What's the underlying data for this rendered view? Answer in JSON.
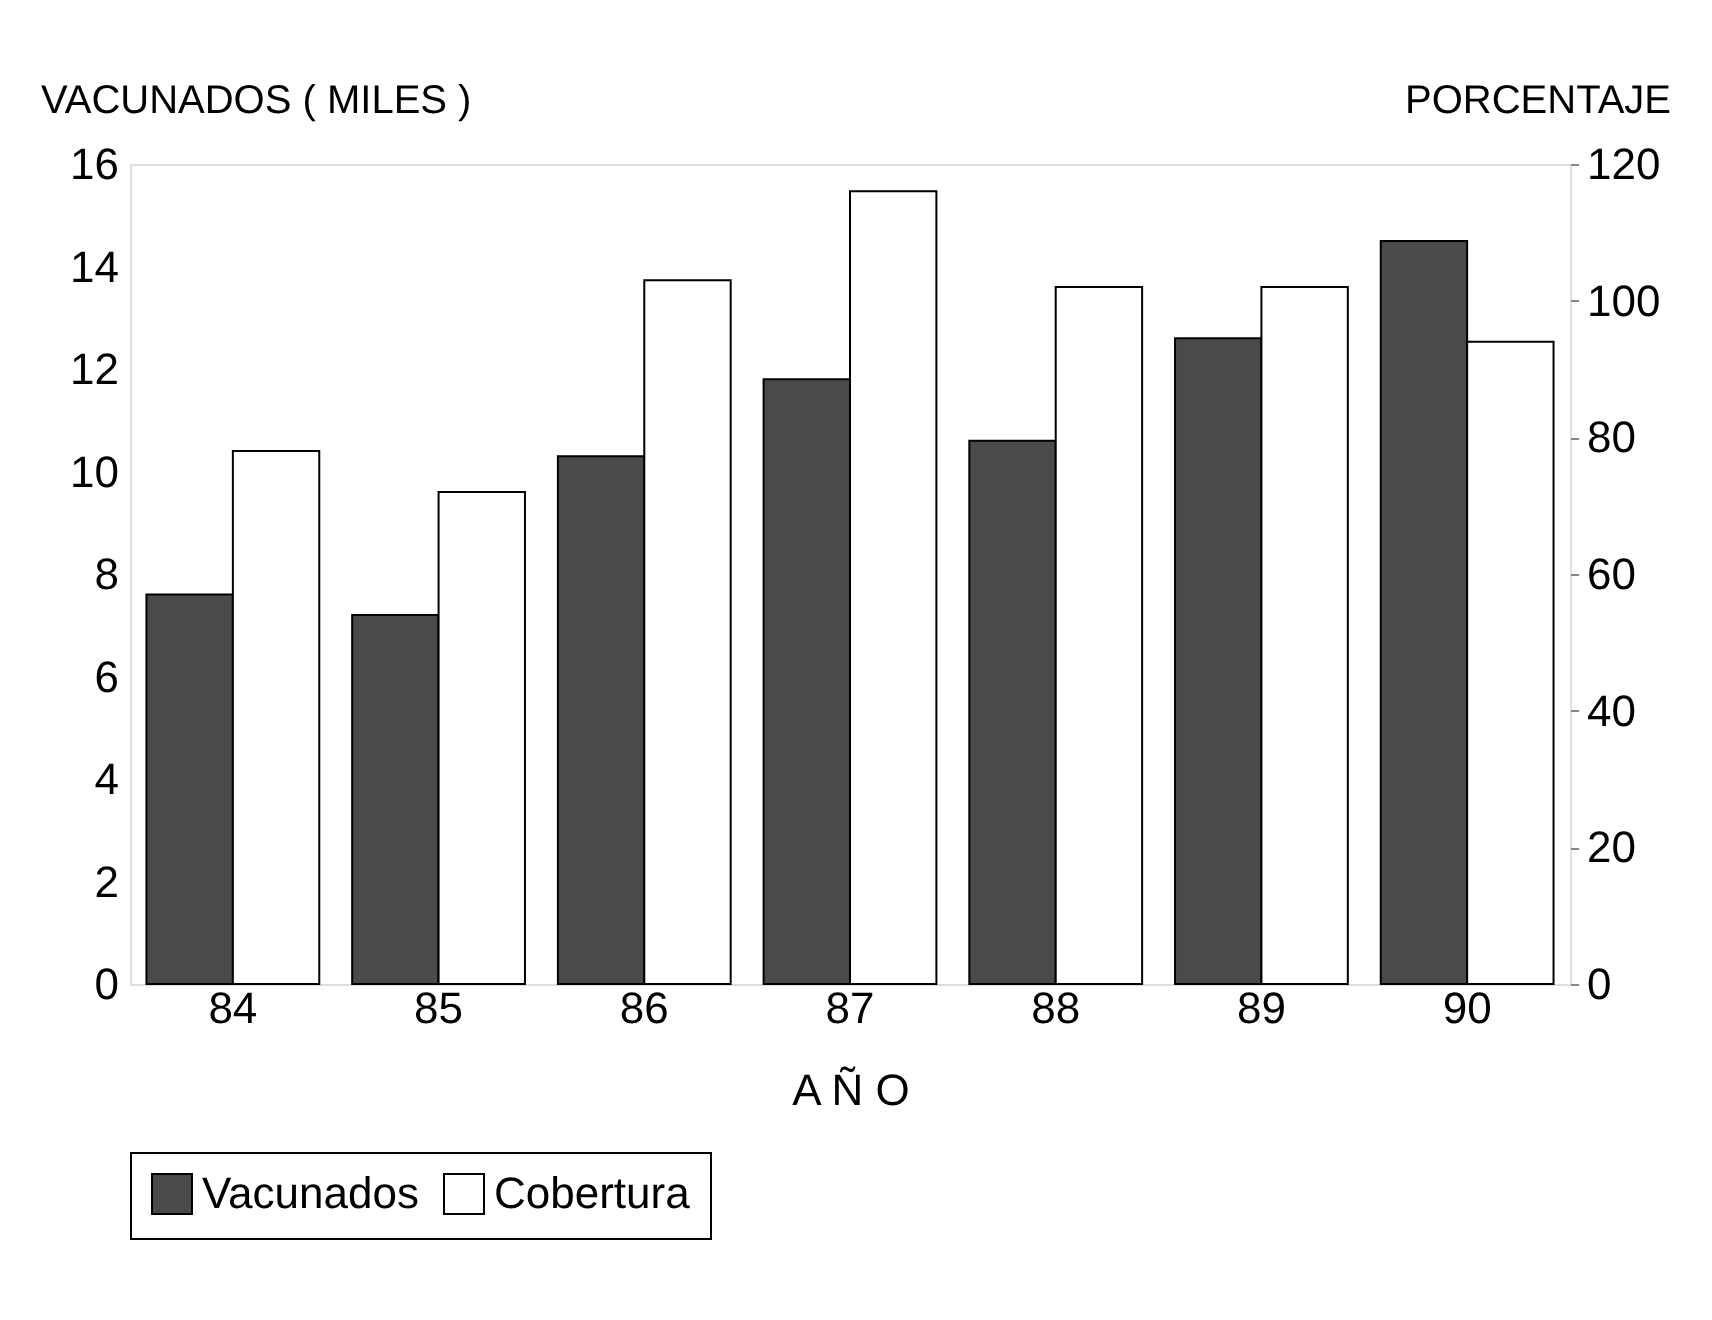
{
  "chart_data": {
    "type": "bar",
    "xlabel": "A Ñ O",
    "ylabel": "VACUNADOS  ( MILES )",
    "y2label": "PORCENTAJE",
    "categories": [
      "84",
      "85",
      "86",
      "87",
      "88",
      "89",
      "90"
    ],
    "series": [
      {
        "name": "Vacunados",
        "color": "#4a4a4a",
        "values": [
          7.6,
          7.2,
          10.3,
          11.8,
          10.6,
          12.6,
          14.5
        ]
      },
      {
        "name": "Cobertura",
        "color": "#ffffff",
        "axis": "y2",
        "values": [
          78,
          72,
          103,
          116,
          102,
          102,
          94
        ]
      }
    ],
    "ylim": [
      0,
      16
    ],
    "yticks": [
      0,
      2,
      4,
      6,
      8,
      10,
      12,
      14,
      16
    ],
    "y2lim": [
      0,
      120
    ],
    "y2ticks": [
      0,
      20,
      40,
      60,
      80,
      100,
      120
    ],
    "grid": false,
    "legend": "bottom"
  }
}
